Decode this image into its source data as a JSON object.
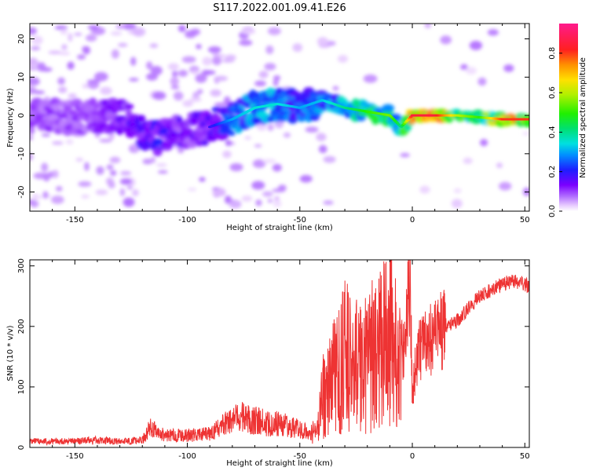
{
  "figure": {
    "title": "S117.2022.001.09.41.E26"
  },
  "chart_data": [
    {
      "type": "heatmap",
      "title": "",
      "xlabel": "Height of straight line (km)",
      "ylabel": "Frequency (Hz)",
      "xlim": [
        -170,
        52
      ],
      "ylim": [
        -25,
        24
      ],
      "xticks": [
        -150,
        -100,
        -50,
        0,
        50
      ],
      "yticks": [
        -20,
        -10,
        0,
        10,
        20
      ],
      "colorbar": {
        "label": "Normalized spectral amplitude",
        "range": [
          0,
          0.95
        ],
        "ticks": [
          0.0,
          0.2,
          0.4,
          0.6,
          0.8
        ],
        "tick_labels": [
          "0.0",
          "0.2",
          "0.4",
          "0.6",
          "0.8"
        ]
      },
      "ridge": [
        {
          "x": -170,
          "y": 0,
          "amp": 0.12
        },
        {
          "x": -150,
          "y": -0.5,
          "amp": 0.12
        },
        {
          "x": -130,
          "y": 0,
          "amp": 0.15
        },
        {
          "x": -115,
          "y": -6,
          "amp": 0.22
        },
        {
          "x": -100,
          "y": -4,
          "amp": 0.14
        },
        {
          "x": -90,
          "y": -3,
          "amp": 0.18
        },
        {
          "x": -80,
          "y": -1,
          "amp": 0.3
        },
        {
          "x": -70,
          "y": 2,
          "amp": 0.35
        },
        {
          "x": -60,
          "y": 3,
          "amp": 0.35
        },
        {
          "x": -50,
          "y": 2,
          "amp": 0.3
        },
        {
          "x": -40,
          "y": 4,
          "amp": 0.32
        },
        {
          "x": -30,
          "y": 2,
          "amp": 0.4
        },
        {
          "x": -20,
          "y": 1,
          "amp": 0.5
        },
        {
          "x": -10,
          "y": 0,
          "amp": 0.55
        },
        {
          "x": -5,
          "y": -3,
          "amp": 0.4
        },
        {
          "x": 0,
          "y": 0,
          "amp": 0.85
        },
        {
          "x": 10,
          "y": 0,
          "amp": 0.85
        },
        {
          "x": 20,
          "y": 0,
          "amp": 0.6
        },
        {
          "x": 30,
          "y": -0.5,
          "amp": 0.5
        },
        {
          "x": 40,
          "y": -1,
          "amp": 0.8
        },
        {
          "x": 50,
          "y": -1,
          "amp": 0.8
        }
      ]
    },
    {
      "type": "line",
      "title": "",
      "xlabel": "Height of straight line (km)",
      "ylabel": "SNR (10 * v/v)",
      "xlim": [
        -170,
        52
      ],
      "ylim": [
        0,
        310
      ],
      "xticks": [
        -150,
        -100,
        -50,
        0,
        50
      ],
      "yticks": [
        0,
        100,
        200,
        300
      ],
      "series": [
        {
          "color": "#ee3333",
          "x": [
            -170,
            -160,
            -150,
            -140,
            -130,
            -120,
            -116,
            -114,
            -110,
            -100,
            -90,
            -85,
            -80,
            -75,
            -70,
            -65,
            -60,
            -55,
            -50,
            -45,
            -42,
            -40,
            -38,
            -35,
            -32,
            -30,
            -25,
            -20,
            -15,
            -12,
            -10,
            -8,
            -5,
            -3,
            -2,
            -1,
            0,
            2,
            5,
            10,
            15,
            20,
            25,
            30,
            35,
            40,
            45,
            50,
            52
          ],
          "y": [
            10,
            10,
            10,
            12,
            10,
            12,
            35,
            25,
            20,
            20,
            22,
            35,
            45,
            50,
            45,
            40,
            40,
            35,
            30,
            25,
            30,
            80,
            100,
            120,
            130,
            150,
            135,
            150,
            160,
            170,
            200,
            150,
            160,
            180,
            240,
            270,
            95,
            150,
            175,
            180,
            200,
            210,
            230,
            250,
            260,
            270,
            275,
            270,
            265
          ]
        }
      ]
    }
  ]
}
